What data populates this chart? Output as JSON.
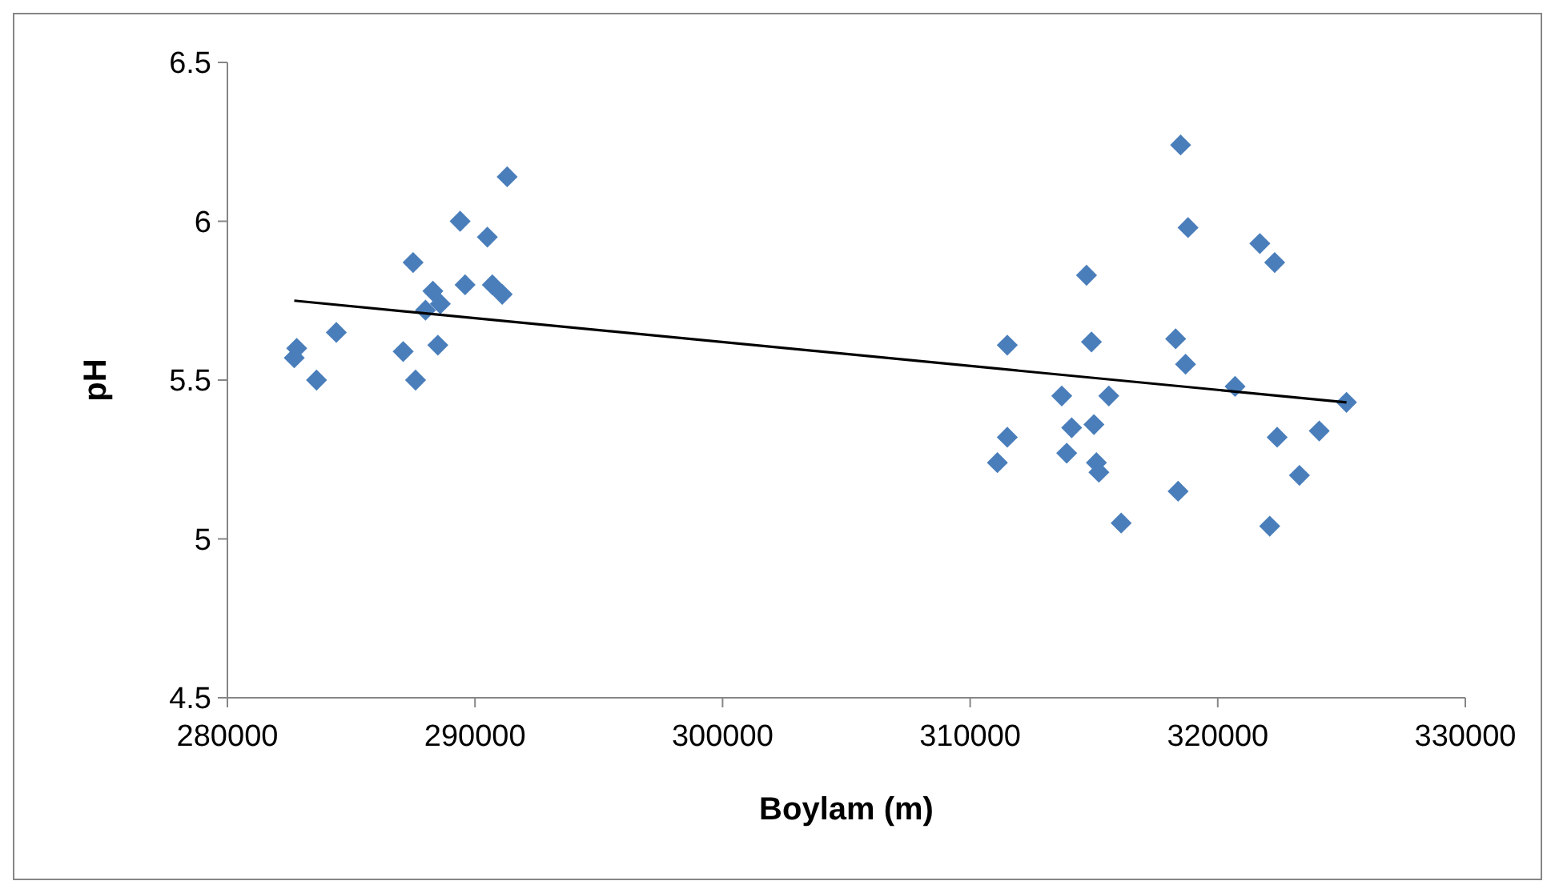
{
  "chart_data": {
    "type": "scatter",
    "xlabel": "Boylam (m)",
    "ylabel": "pH",
    "xlim": [
      280000,
      330000
    ],
    "xticks": [
      280000,
      290000,
      300000,
      310000,
      320000,
      330000
    ],
    "ylim": [
      4.5,
      6.5
    ],
    "yticks": [
      4.5,
      5,
      5.5,
      6,
      6.5
    ],
    "grid": false,
    "marker": "diamond",
    "series": [
      {
        "color": "#4a7ebb",
        "x": [
          282800,
          282700,
          283600,
          284400,
          287100,
          287500,
          287600,
          288300,
          288000,
          288600,
          288500,
          289400,
          289600,
          290500,
          290700,
          291100,
          291300,
          318500,
          318800,
          321700,
          322300,
          314700,
          311500,
          314900,
          318300,
          318700,
          320700,
          313700,
          315600,
          314100,
          315000,
          311500,
          311100,
          313900,
          315100,
          315200,
          316100,
          318400,
          322100,
          322400,
          323300,
          324100,
          325200
        ],
        "values": [
          5.6,
          5.57,
          5.5,
          5.65,
          5.59,
          5.87,
          5.5,
          5.78,
          5.72,
          5.74,
          5.61,
          6.0,
          5.8,
          5.95,
          5.8,
          5.77,
          6.14,
          6.24,
          5.98,
          5.93,
          5.87,
          5.83,
          5.61,
          5.62,
          5.63,
          5.55,
          5.48,
          5.45,
          5.45,
          5.35,
          5.36,
          5.32,
          5.24,
          5.27,
          5.24,
          5.21,
          5.05,
          5.15,
          5.04,
          5.32,
          5.2,
          5.34,
          5.43
        ]
      },
      {
        "type": "line",
        "color": "#000000",
        "marker": "none",
        "line_style": "solid",
        "x": [
          282700,
          325200
        ],
        "values": [
          5.75,
          5.43
        ]
      }
    ]
  }
}
